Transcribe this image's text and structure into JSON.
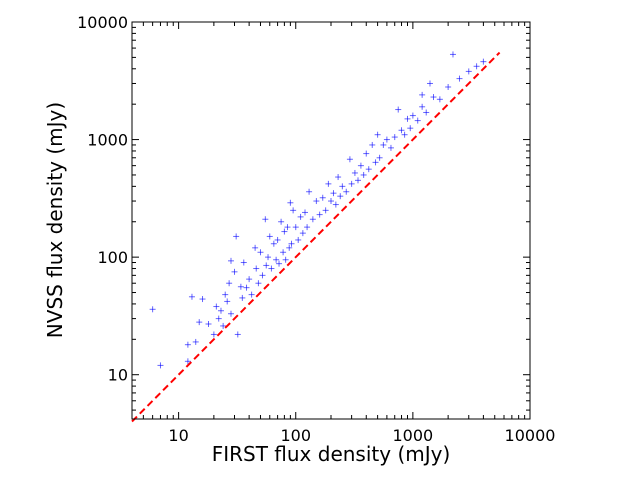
{
  "chart_data": {
    "type": "scatter",
    "title": "",
    "xlabel": "FIRST flux density (mJy)",
    "ylabel": "NVSS flux density (mJy)",
    "xscale": "log",
    "yscale": "log",
    "xlim": [
      4,
      10000
    ],
    "ylim": [
      4.2,
      10000
    ],
    "x_ticks": [
      10,
      100,
      1000,
      10000
    ],
    "x_tick_labels": [
      "10",
      "100",
      "1000",
      "10000"
    ],
    "y_ticks": [
      10,
      100,
      1000,
      10000
    ],
    "y_tick_labels": [
      "10",
      "100",
      "1000",
      "10000"
    ],
    "grid": false,
    "legend": "none",
    "marker": "+",
    "colors": {
      "points": "#0000ff",
      "reference_line": "#ff0000"
    },
    "reference_line": {
      "style": "dashed",
      "relation": "y = x",
      "x": [
        4,
        5500
      ],
      "y": [
        4,
        5500
      ]
    },
    "series": [
      {
        "points": [
          [
            6,
            36
          ],
          [
            7,
            12
          ],
          [
            12,
            13
          ],
          [
            13,
            46
          ],
          [
            16,
            44
          ],
          [
            12,
            18
          ],
          [
            14,
            19
          ],
          [
            15,
            28
          ],
          [
            18,
            27
          ],
          [
            20,
            22
          ],
          [
            22,
            30
          ],
          [
            21,
            38
          ],
          [
            23,
            35
          ],
          [
            24,
            26
          ],
          [
            25,
            48
          ],
          [
            26,
            42
          ],
          [
            27,
            60
          ],
          [
            28,
            93
          ],
          [
            28,
            33
          ],
          [
            30,
            75
          ],
          [
            31,
            150
          ],
          [
            32,
            22
          ],
          [
            34,
            56
          ],
          [
            35,
            45
          ],
          [
            36,
            90
          ],
          [
            38,
            55
          ],
          [
            40,
            65
          ],
          [
            42,
            48
          ],
          [
            45,
            120
          ],
          [
            46,
            80
          ],
          [
            48,
            60
          ],
          [
            50,
            110
          ],
          [
            52,
            70
          ],
          [
            55,
            210
          ],
          [
            56,
            85
          ],
          [
            58,
            100
          ],
          [
            60,
            150
          ],
          [
            62,
            80
          ],
          [
            65,
            130
          ],
          [
            68,
            95
          ],
          [
            70,
            140
          ],
          [
            72,
            88
          ],
          [
            75,
            200
          ],
          [
            78,
            110
          ],
          [
            80,
            165
          ],
          [
            82,
            95
          ],
          [
            85,
            180
          ],
          [
            88,
            120
          ],
          [
            90,
            290
          ],
          [
            92,
            130
          ],
          [
            95,
            250
          ],
          [
            100,
            180
          ],
          [
            105,
            140
          ],
          [
            110,
            220
          ],
          [
            115,
            160
          ],
          [
            120,
            240
          ],
          [
            125,
            180
          ],
          [
            130,
            360
          ],
          [
            140,
            210
          ],
          [
            150,
            300
          ],
          [
            160,
            230
          ],
          [
            170,
            320
          ],
          [
            180,
            250
          ],
          [
            190,
            420
          ],
          [
            200,
            300
          ],
          [
            210,
            350
          ],
          [
            220,
            280
          ],
          [
            230,
            480
          ],
          [
            240,
            330
          ],
          [
            250,
            400
          ],
          [
            270,
            360
          ],
          [
            290,
            680
          ],
          [
            300,
            420
          ],
          [
            320,
            520
          ],
          [
            340,
            450
          ],
          [
            360,
            600
          ],
          [
            380,
            500
          ],
          [
            400,
            760
          ],
          [
            420,
            560
          ],
          [
            450,
            900
          ],
          [
            480,
            640
          ],
          [
            500,
            1100
          ],
          [
            520,
            700
          ],
          [
            560,
            900
          ],
          [
            600,
            1000
          ],
          [
            650,
            850
          ],
          [
            700,
            1050
          ],
          [
            750,
            1800
          ],
          [
            800,
            1200
          ],
          [
            850,
            1100
          ],
          [
            900,
            1500
          ],
          [
            950,
            1250
          ],
          [
            1000,
            1600
          ],
          [
            1100,
            1450
          ],
          [
            1200,
            1900
          ],
          [
            1300,
            1700
          ],
          [
            1500,
            2300
          ],
          [
            1700,
            2200
          ],
          [
            2000,
            2800
          ],
          [
            2200,
            5300
          ],
          [
            2500,
            3300
          ],
          [
            3000,
            3800
          ],
          [
            3500,
            4200
          ],
          [
            4000,
            4600
          ],
          [
            1400,
            3000
          ],
          [
            1200,
            2400
          ]
        ]
      }
    ]
  }
}
